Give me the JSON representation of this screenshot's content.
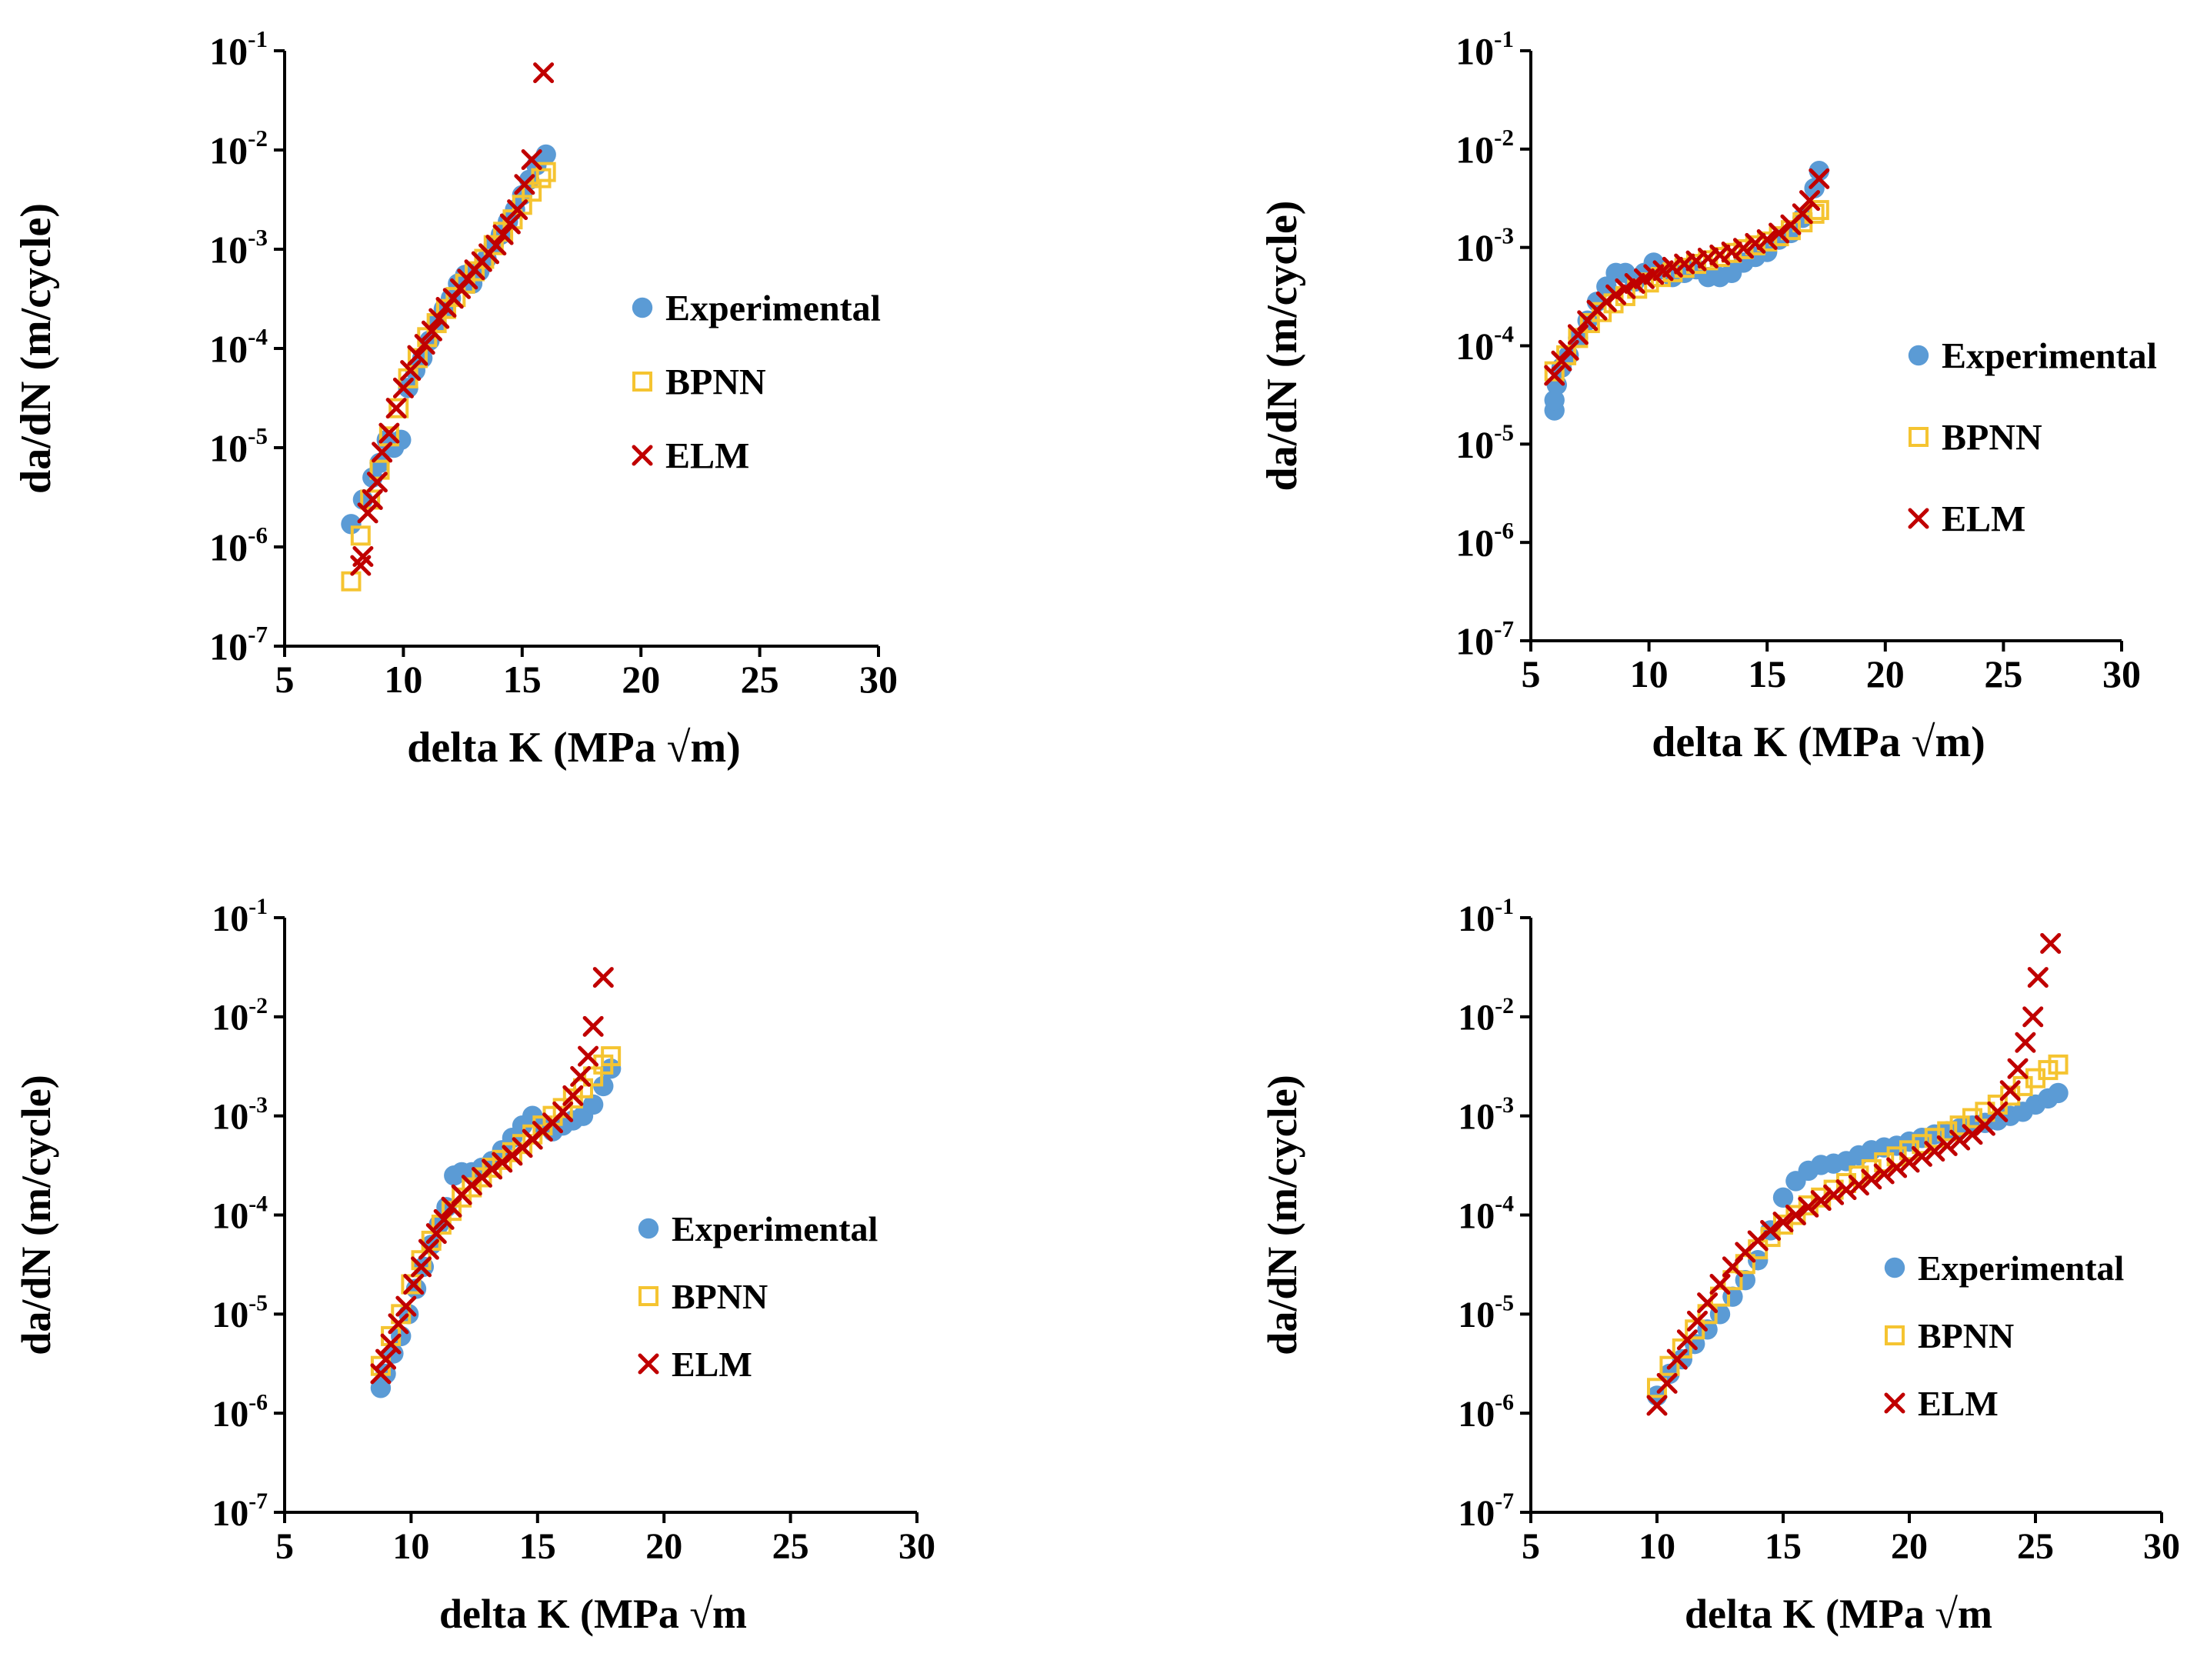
{
  "chart_data": [
    {
      "id": "top-left",
      "type": "scatter",
      "xlabel": "delta K (MPa √m)",
      "ylabel": "da/dN (m/cycle)",
      "xlim": [
        5,
        30
      ],
      "xticks": [
        5,
        10,
        15,
        20,
        25,
        30
      ],
      "yscale": "log",
      "ylim": [
        1e-07,
        0.1
      ],
      "yticks_exp": [
        "-7",
        "-6",
        "-5",
        "-4",
        "-3",
        "-2",
        "-1"
      ],
      "legend": {
        "position": "center-right",
        "entries": [
          "Experimental",
          "BPNN",
          "ELM"
        ]
      },
      "series": [
        {
          "name": "Experimental",
          "marker": "circle",
          "color": "#5b9bd5",
          "x": [
            7.8,
            8.3,
            8.7,
            9.0,
            9.3,
            9.6,
            9.9,
            10.2,
            10.5,
            10.8,
            11.1,
            11.4,
            11.7,
            12.0,
            12.3,
            12.6,
            12.9,
            13.2,
            13.5,
            13.8,
            14.1,
            14.4,
            14.7,
            15.0,
            15.3,
            15.6,
            16.0
          ],
          "y": [
            1.7e-06,
            3e-06,
            5e-06,
            7e-06,
            1.2e-05,
            1e-05,
            1.2e-05,
            4e-05,
            6e-05,
            8e-05,
            0.00012,
            0.00018,
            0.00025,
            0.00032,
            0.00045,
            0.00055,
            0.00045,
            0.0006,
            0.0008,
            0.0011,
            0.0014,
            0.0019,
            0.0025,
            0.0035,
            0.005,
            0.007,
            0.009
          ]
        },
        {
          "name": "BPNN",
          "marker": "square",
          "color": "#f5c431",
          "x": [
            7.8,
            8.2,
            8.6,
            9.0,
            9.4,
            9.8,
            10.2,
            10.6,
            11.0,
            11.4,
            11.8,
            12.2,
            12.6,
            13.0,
            13.4,
            13.8,
            14.2,
            14.6,
            15.0,
            15.4,
            15.8,
            16.0
          ],
          "y": [
            4.5e-07,
            1.3e-06,
            3e-06,
            6e-06,
            1.3e-05,
            2.5e-05,
            5e-05,
            8e-05,
            0.00013,
            0.00018,
            0.00025,
            0.00033,
            0.00045,
            0.0006,
            0.0008,
            0.0011,
            0.0015,
            0.002,
            0.0028,
            0.0038,
            0.0052,
            0.006
          ]
        },
        {
          "name": "ELM",
          "marker": "x",
          "color": "#c00000",
          "x": [
            8.2,
            8.3,
            8.5,
            8.7,
            8.9,
            9.1,
            9.4,
            9.7,
            10.0,
            10.3,
            10.6,
            10.9,
            11.2,
            11.5,
            11.8,
            12.1,
            12.4,
            12.7,
            13.0,
            13.3,
            13.6,
            13.9,
            14.2,
            14.5,
            14.8,
            15.1,
            15.4,
            15.9
          ],
          "y": [
            6.5e-07,
            8e-07,
            2.2e-06,
            3e-06,
            4.5e-06,
            9e-06,
            1.4e-05,
            2.5e-05,
            4e-05,
            6e-05,
            8.5e-05,
            0.00011,
            0.00015,
            0.0002,
            0.00026,
            0.00032,
            0.0004,
            0.0005,
            0.00062,
            0.00075,
            0.0009,
            0.0011,
            0.0014,
            0.0018,
            0.0025,
            0.0045,
            0.008,
            0.06
          ]
        }
      ]
    },
    {
      "id": "top-right",
      "type": "scatter",
      "xlabel": "delta K (MPa √m)",
      "ylabel": "da/dN (m/cycle)",
      "xlim": [
        5,
        30
      ],
      "xticks": [
        5,
        10,
        15,
        20,
        25,
        30
      ],
      "yscale": "log",
      "ylim": [
        1e-07,
        0.1
      ],
      "yticks_exp": [
        "-7",
        "-6",
        "-5",
        "-4",
        "-3",
        "-2",
        "-1"
      ],
      "legend": {
        "position": "center-right",
        "entries": [
          "Experimental",
          "BPNN",
          "ELM"
        ]
      },
      "series": [
        {
          "name": "Experimental",
          "marker": "circle",
          "color": "#5b9bd5",
          "x": [
            6.0,
            6.0,
            6.1,
            6.3,
            6.6,
            7.0,
            7.4,
            7.8,
            8.2,
            8.6,
            9.0,
            9.4,
            9.8,
            10.2,
            10.6,
            11.0,
            11.5,
            12.0,
            12.5,
            13.0,
            13.5,
            14.0,
            14.5,
            15.0,
            15.5,
            16.0,
            16.5,
            17.0,
            17.2
          ],
          "y": [
            2.2e-05,
            2.8e-05,
            4e-05,
            6e-05,
            8e-05,
            0.00012,
            0.00018,
            0.00028,
            0.0004,
            0.00055,
            0.00055,
            0.00045,
            0.00055,
            0.0007,
            0.0006,
            0.0005,
            0.00055,
            0.0006,
            0.0005,
            0.0005,
            0.00055,
            0.0007,
            0.0008,
            0.0009,
            0.0012,
            0.0014,
            0.002,
            0.004,
            0.006
          ]
        },
        {
          "name": "BPNN",
          "marker": "square",
          "color": "#f5c431",
          "x": [
            6.0,
            6.5,
            7.0,
            7.5,
            8.0,
            8.5,
            9.0,
            9.5,
            10.0,
            10.5,
            11.0,
            11.5,
            12.0,
            12.5,
            13.0,
            13.5,
            14.0,
            14.5,
            15.0,
            15.5,
            16.0,
            16.5,
            17.0,
            17.2
          ],
          "y": [
            5.5e-05,
            8e-05,
            0.00012,
            0.00017,
            0.00022,
            0.00027,
            0.00032,
            0.00038,
            0.00044,
            0.0005,
            0.00056,
            0.00062,
            0.00068,
            0.00074,
            0.0008,
            0.00088,
            0.00096,
            0.00105,
            0.00115,
            0.0013,
            0.0015,
            0.0018,
            0.0022,
            0.0024
          ]
        },
        {
          "name": "ELM",
          "marker": "x",
          "color": "#c00000",
          "x": [
            6.0,
            6.3,
            6.6,
            7.0,
            7.4,
            7.8,
            8.2,
            8.6,
            9.0,
            9.4,
            9.8,
            10.2,
            10.6,
            11.0,
            11.5,
            12.0,
            12.5,
            13.0,
            13.5,
            14.0,
            14.5,
            15.0,
            15.5,
            16.0,
            16.5,
            16.8,
            17.2
          ],
          "y": [
            5e-05,
            7e-05,
            9e-05,
            0.00013,
            0.00018,
            0.00023,
            0.00028,
            0.00033,
            0.00038,
            0.00043,
            0.00048,
            0.00053,
            0.00058,
            0.00063,
            0.00068,
            0.00073,
            0.00078,
            0.00084,
            0.0009,
            0.00098,
            0.0011,
            0.0012,
            0.0014,
            0.0017,
            0.0022,
            0.003,
            0.005
          ]
        }
      ]
    },
    {
      "id": "bottom-left",
      "type": "scatter",
      "xlabel": "delta K (MPa √m",
      "ylabel": "da/dN (m/cycle)",
      "xlim": [
        5,
        30
      ],
      "xticks": [
        5,
        10,
        15,
        20,
        25,
        30
      ],
      "yscale": "log",
      "ylim": [
        1e-07,
        0.1
      ],
      "yticks_exp": [
        "-7",
        "-6",
        "-5",
        "-4",
        "-3",
        "-2",
        "-1"
      ],
      "legend": {
        "position": "center-right",
        "entries": [
          "Experimental",
          "BPNN",
          "ELM"
        ]
      },
      "series": [
        {
          "name": "Experimental",
          "marker": "circle",
          "color": "#5b9bd5",
          "x": [
            8.8,
            9.0,
            9.3,
            9.6,
            9.9,
            10.2,
            10.5,
            10.8,
            11.1,
            11.4,
            11.7,
            12.0,
            12.4,
            12.8,
            13.2,
            13.6,
            14.0,
            14.4,
            14.8,
            15.2,
            15.6,
            16.0,
            16.4,
            16.8,
            17.2,
            17.6,
            17.9
          ],
          "y": [
            1.8e-06,
            2.5e-06,
            4e-06,
            6e-06,
            1e-05,
            1.8e-05,
            3e-05,
            5e-05,
            8e-05,
            0.00012,
            0.00025,
            0.00027,
            0.00027,
            0.0003,
            0.00035,
            0.00045,
            0.0006,
            0.0008,
            0.001,
            0.0008,
            0.0007,
            0.0008,
            0.0009,
            0.001,
            0.0013,
            0.002,
            0.003
          ]
        },
        {
          "name": "BPNN",
          "marker": "square",
          "color": "#f5c431",
          "x": [
            8.8,
            9.2,
            9.6,
            10.0,
            10.4,
            10.8,
            11.2,
            11.6,
            12.0,
            12.4,
            12.8,
            13.2,
            13.6,
            14.0,
            14.4,
            14.8,
            15.2,
            15.6,
            16.0,
            16.4,
            16.8,
            17.2,
            17.6,
            17.9
          ],
          "y": [
            3e-06,
            6e-06,
            1e-05,
            2e-05,
            3.5e-05,
            5.5e-05,
            8e-05,
            0.00011,
            0.00015,
            0.00019,
            0.00024,
            0.0003,
            0.00036,
            0.00043,
            0.00052,
            0.00065,
            0.0008,
            0.001,
            0.0012,
            0.0015,
            0.0019,
            0.0025,
            0.0033,
            0.004
          ]
        },
        {
          "name": "ELM",
          "marker": "x",
          "color": "#c00000",
          "x": [
            8.8,
            9.0,
            9.2,
            9.5,
            9.8,
            10.1,
            10.4,
            10.7,
            11.0,
            11.3,
            11.6,
            12.0,
            12.4,
            12.8,
            13.2,
            13.6,
            14.0,
            14.4,
            14.8,
            15.2,
            15.6,
            16.0,
            16.4,
            16.7,
            17.0,
            17.2,
            17.6
          ],
          "y": [
            2.5e-06,
            3.5e-06,
            5e-06,
            8e-06,
            1.2e-05,
            2e-05,
            3e-05,
            4.5e-05,
            6.5e-05,
            9e-05,
            0.00012,
            0.00016,
            0.0002,
            0.00024,
            0.00029,
            0.00034,
            0.0004,
            0.00048,
            0.00058,
            0.0007,
            0.00085,
            0.0011,
            0.0016,
            0.0025,
            0.004,
            0.008,
            0.025
          ]
        }
      ]
    },
    {
      "id": "bottom-right",
      "type": "scatter",
      "xlabel": "delta K (MPa √m",
      "ylabel": "da/dN (m/cycle)",
      "xlim": [
        5,
        30
      ],
      "xticks": [
        5,
        10,
        15,
        20,
        25,
        30
      ],
      "yscale": "log",
      "ylim": [
        1e-07,
        0.1
      ],
      "yticks_exp": [
        "-7",
        "-6",
        "-5",
        "-4",
        "-3",
        "-2",
        "-1"
      ],
      "legend": {
        "position": "center-right",
        "entries": [
          "Experimental",
          "BPNN",
          "ELM"
        ]
      },
      "series": [
        {
          "name": "Experimental",
          "marker": "circle",
          "color": "#5b9bd5",
          "x": [
            10.0,
            10.5,
            11.0,
            11.5,
            12.0,
            12.5,
            13.0,
            13.5,
            14.0,
            14.5,
            15.0,
            15.5,
            16.0,
            16.5,
            17.0,
            17.5,
            18.0,
            18.5,
            19.0,
            19.5,
            20.0,
            20.5,
            21.0,
            21.5,
            22.0,
            22.5,
            23.0,
            23.5,
            24.0,
            24.5,
            25.0,
            25.5,
            25.9
          ],
          "y": [
            1.5e-06,
            2.5e-06,
            3.5e-06,
            5e-06,
            7e-06,
            1e-05,
            1.5e-05,
            2.2e-05,
            3.5e-05,
            7e-05,
            0.00015,
            0.00022,
            0.00028,
            0.00032,
            0.00033,
            0.00035,
            0.0004,
            0.00045,
            0.00048,
            0.0005,
            0.00055,
            0.0006,
            0.00065,
            0.0007,
            0.00075,
            0.0008,
            0.00085,
            0.0009,
            0.001,
            0.0011,
            0.0013,
            0.0015,
            0.0017
          ]
        },
        {
          "name": "BPNN",
          "marker": "square",
          "color": "#f5c431",
          "x": [
            10.0,
            10.5,
            11.0,
            11.5,
            12.0,
            12.5,
            13.0,
            13.5,
            14.0,
            14.5,
            15.0,
            15.5,
            16.0,
            16.5,
            17.0,
            17.5,
            18.0,
            18.5,
            19.0,
            19.5,
            20.0,
            20.5,
            21.0,
            21.5,
            22.0,
            22.5,
            23.0,
            23.5,
            24.0,
            24.5,
            25.0,
            25.5,
            25.9
          ],
          "y": [
            1.8e-06,
            3e-06,
            4.5e-06,
            7e-06,
            1e-05,
            1.5e-05,
            2.2e-05,
            3.2e-05,
            4.5e-05,
            6e-05,
            8e-05,
            0.0001,
            0.000125,
            0.00015,
            0.00018,
            0.00021,
            0.00025,
            0.00029,
            0.00034,
            0.00039,
            0.00045,
            0.00052,
            0.0006,
            0.0007,
            0.0008,
            0.00095,
            0.0011,
            0.0013,
            0.0016,
            0.002,
            0.0024,
            0.0029,
            0.0033
          ]
        },
        {
          "name": "ELM",
          "marker": "x",
          "color": "#c00000",
          "x": [
            10.0,
            10.4,
            10.8,
            11.2,
            11.6,
            12.0,
            12.5,
            13.0,
            13.5,
            14.0,
            14.5,
            15.0,
            15.5,
            16.0,
            16.5,
            17.0,
            17.5,
            18.0,
            18.5,
            19.0,
            19.5,
            20.0,
            20.5,
            21.0,
            21.5,
            22.0,
            22.5,
            23.0,
            23.5,
            24.0,
            24.3,
            24.6,
            24.9,
            25.1,
            25.6
          ],
          "y": [
            1.2e-06,
            2e-06,
            3.5e-06,
            5.5e-06,
            8.5e-06,
            1.3e-05,
            2e-05,
            3e-05,
            4.2e-05,
            5.5e-05,
            7e-05,
            8.5e-05,
            0.0001,
            0.00012,
            0.00014,
            0.00016,
            0.00018,
            0.0002,
            0.00023,
            0.00026,
            0.0003,
            0.00034,
            0.00039,
            0.00044,
            0.0005,
            0.00057,
            0.00065,
            0.0008,
            0.0011,
            0.0018,
            0.003,
            0.0055,
            0.01,
            0.025,
            0.055
          ]
        }
      ]
    }
  ]
}
